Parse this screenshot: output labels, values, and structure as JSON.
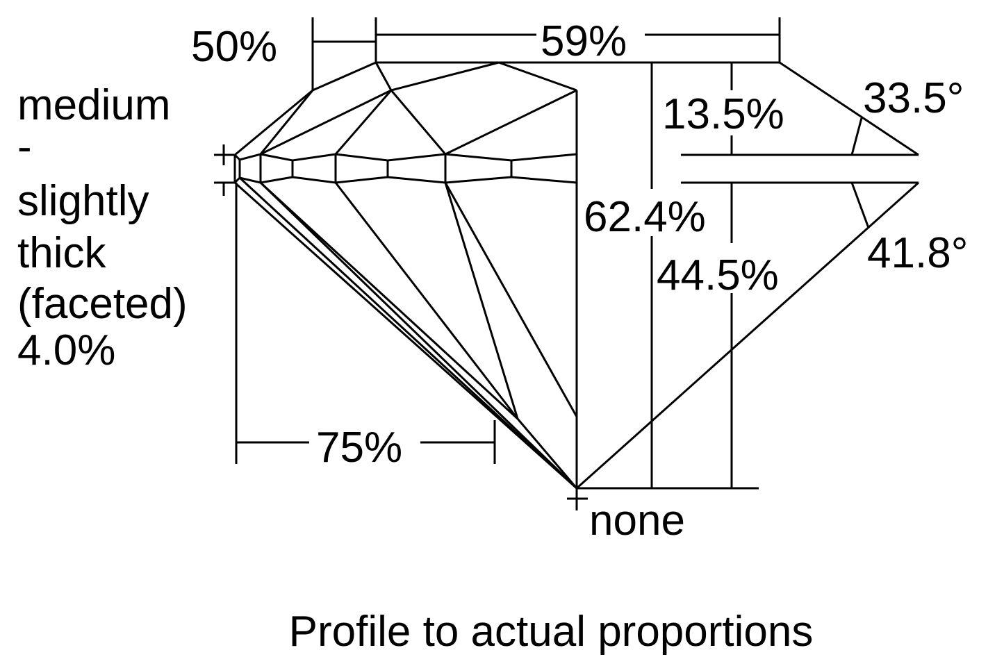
{
  "labels": {
    "table_small": "50%",
    "table": "59%",
    "girdle_lines": [
      "medium",
      "-",
      "slightly",
      "thick",
      "(faceted)",
      "4.0%"
    ],
    "crown_height": "13.5%",
    "crown_angle": "33.5°",
    "total_depth": "62.4%",
    "pavilion_depth": "44.5%",
    "pavilion_angle": "41.8°",
    "lower_half": "75%",
    "culet": "none"
  },
  "caption": "Profile to actual proportions",
  "colors": {
    "line": "#000000",
    "background": "#ffffff"
  }
}
